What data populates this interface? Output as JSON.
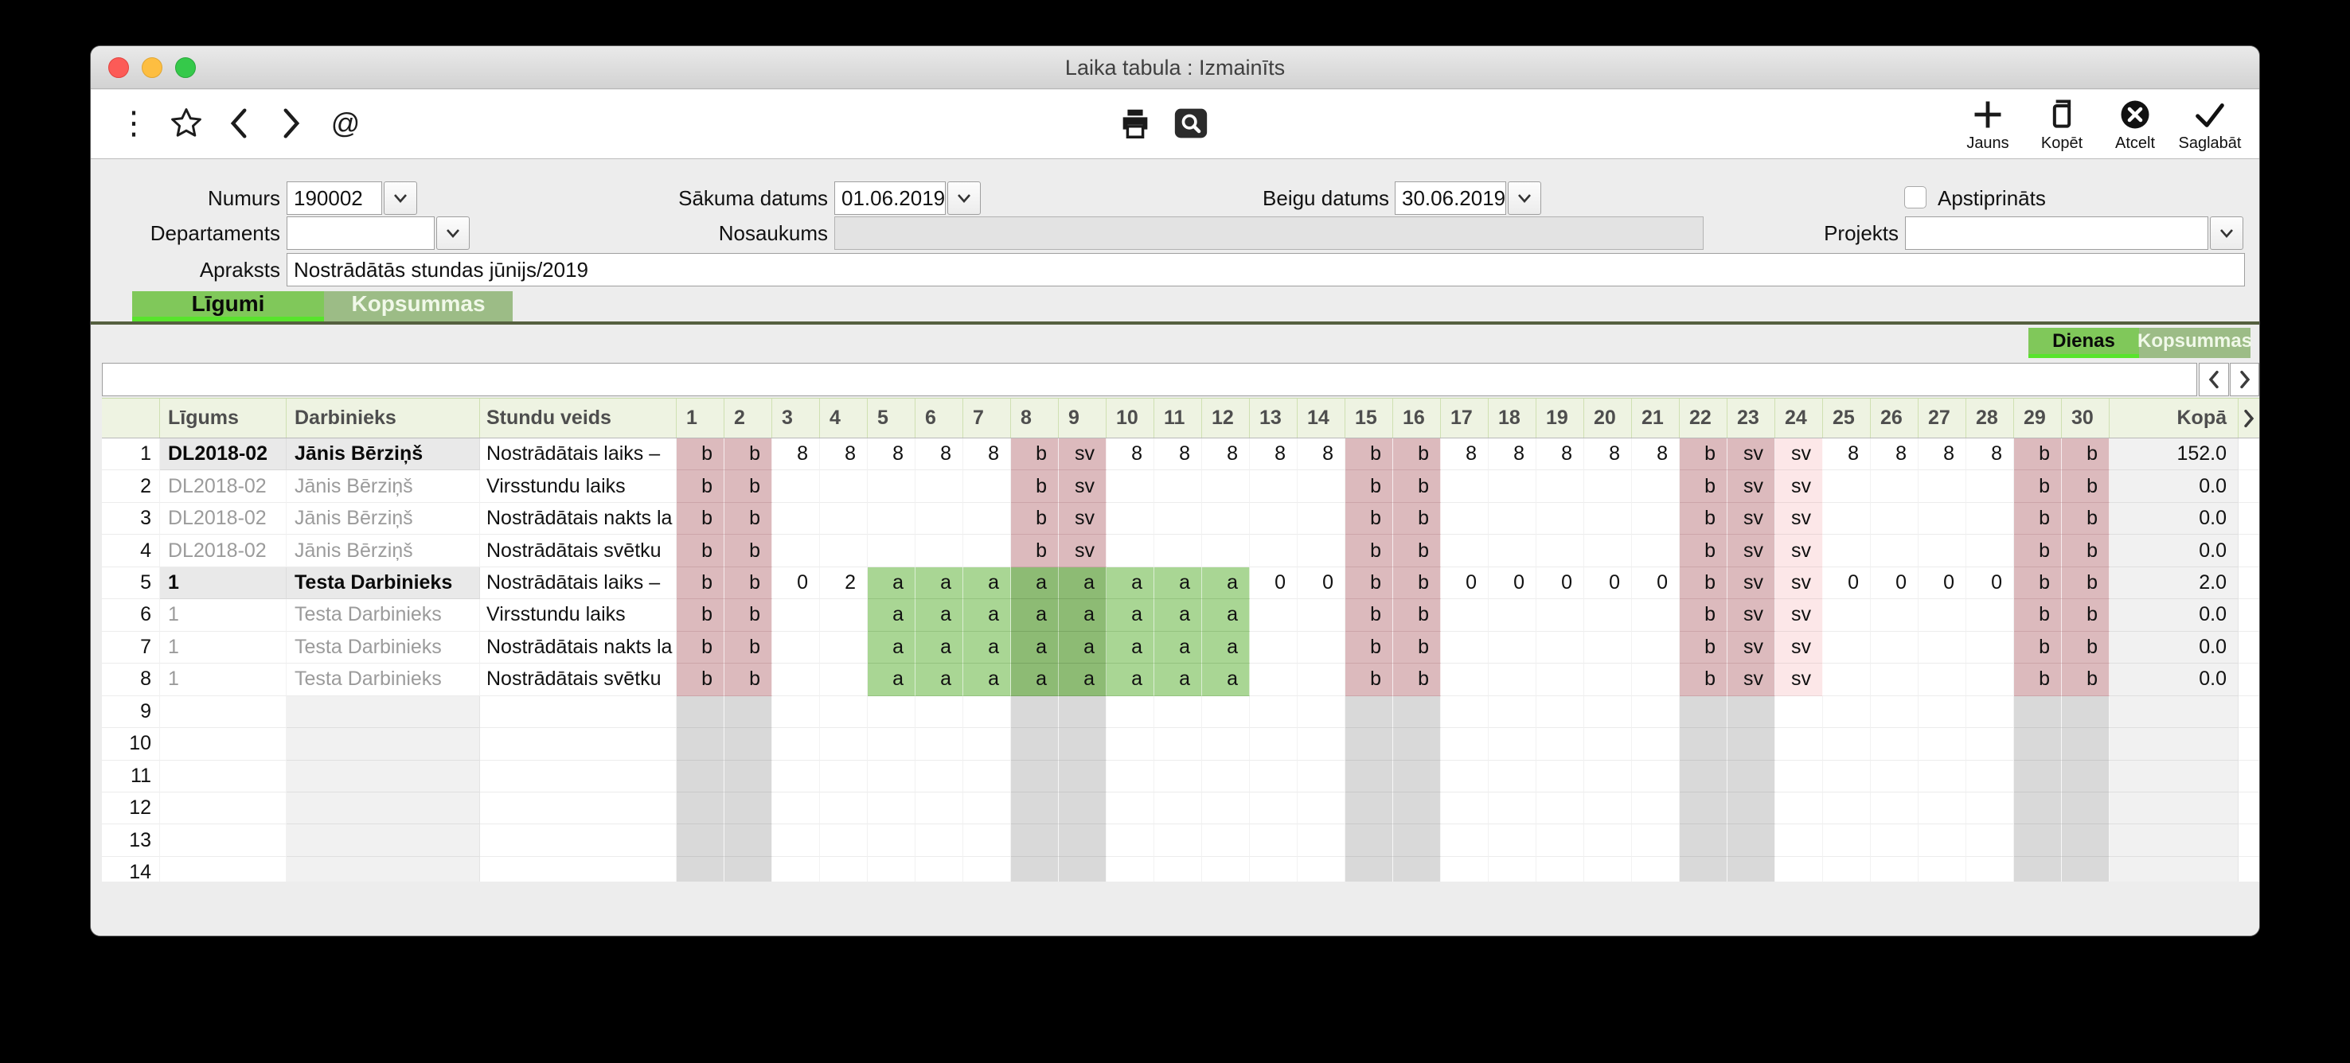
{
  "window": {
    "title": "Laika tabula : Izmainīts"
  },
  "toolbar": {
    "left_icons": [
      "kebab-menu",
      "favorite-star",
      "back",
      "forward",
      "link"
    ],
    "center_icons": [
      "print",
      "preview-search"
    ],
    "buttons": [
      {
        "label": "Jauns",
        "icon": "plus"
      },
      {
        "label": "Kopēt",
        "icon": "copy"
      },
      {
        "label": "Atcelt",
        "icon": "cancel-circle-x"
      },
      {
        "label": "Saglabāt",
        "icon": "check"
      }
    ]
  },
  "form": {
    "numurs_label": "Numurs",
    "numurs_value": "190002",
    "sakuma_label": "Sākuma datums",
    "sakuma_value": "01.06.2019",
    "beigu_label": "Beigu datums",
    "beigu_value": "30.06.2019",
    "apstiprinats_label": "Apstiprināts",
    "apstiprinats_checked": false,
    "departaments_label": "Departaments",
    "departaments_value": "",
    "nosaukums_label": "Nosaukums",
    "nosaukums_value": "",
    "projekts_label": "Projekts",
    "projekts_value": "",
    "apraksts_label": "Apraksts",
    "apraksts_value": "Nostrādātās stundas jūnijs/2019"
  },
  "tabs": {
    "main": [
      {
        "label": "Līgumi",
        "active": true
      },
      {
        "label": "Kopsummas",
        "active": false
      }
    ],
    "view": [
      {
        "label": "Dienas",
        "active": true
      },
      {
        "label": "Kopsummas",
        "active": false
      }
    ]
  },
  "table": {
    "headers": {
      "ligums": "Līgums",
      "darbinieks": "Darbinieks",
      "stundu_veids": "Stundu veids",
      "kopa": "Kopā"
    },
    "day_headers": [
      "1",
      "2",
      "3",
      "4",
      "5",
      "6",
      "7",
      "8",
      "9",
      "10",
      "11",
      "12",
      "13",
      "14",
      "15",
      "16",
      "17",
      "18",
      "19",
      "20",
      "21",
      "22",
      "23",
      "24",
      "25",
      "26",
      "27",
      "28",
      "29",
      "30"
    ],
    "weekend_days": [
      1,
      2,
      8,
      9,
      15,
      16,
      22,
      23,
      29,
      30
    ],
    "holiday_days": [
      24
    ],
    "total_row_slots": 15,
    "rows": [
      {
        "num": "1",
        "ligums": "DL2018-02",
        "darbinieks": "Jānis Bērziņš",
        "stundu_veids": "Nostrādātais laiks –",
        "emphasized": true,
        "days": {
          "1": "b",
          "2": "b",
          "3": "8",
          "4": "8",
          "5": "8",
          "6": "8",
          "7": "8",
          "8": "b",
          "9": "sv",
          "10": "8",
          "11": "8",
          "12": "8",
          "13": "8",
          "14": "8",
          "15": "b",
          "16": "b",
          "17": "8",
          "18": "8",
          "19": "8",
          "20": "8",
          "21": "8",
          "22": "b",
          "23": "sv",
          "24": "sv",
          "25": "8",
          "26": "8",
          "27": "8",
          "28": "8",
          "29": "b",
          "30": "b"
        },
        "kopa": "152.0"
      },
      {
        "num": "2",
        "ligums": "DL2018-02",
        "darbinieks": "Jānis Bērziņš",
        "stundu_veids": "Virsstundu laiks",
        "emphasized": false,
        "days": {
          "1": "b",
          "2": "b",
          "8": "b",
          "9": "sv",
          "15": "b",
          "16": "b",
          "22": "b",
          "23": "sv",
          "24": "sv",
          "29": "b",
          "30": "b"
        },
        "kopa": "0.0"
      },
      {
        "num": "3",
        "ligums": "DL2018-02",
        "darbinieks": "Jānis Bērziņš",
        "stundu_veids": "Nostrādātais nakts la",
        "emphasized": false,
        "days": {
          "1": "b",
          "2": "b",
          "8": "b",
          "9": "sv",
          "15": "b",
          "16": "b",
          "22": "b",
          "23": "sv",
          "24": "sv",
          "29": "b",
          "30": "b"
        },
        "kopa": "0.0"
      },
      {
        "num": "4",
        "ligums": "DL2018-02",
        "darbinieks": "Jānis Bērziņš",
        "stundu_veids": "Nostrādātais svētku",
        "emphasized": false,
        "days": {
          "1": "b",
          "2": "b",
          "8": "b",
          "9": "sv",
          "15": "b",
          "16": "b",
          "22": "b",
          "23": "sv",
          "24": "sv",
          "29": "b",
          "30": "b"
        },
        "kopa": "0.0"
      },
      {
        "num": "5",
        "ligums": "1",
        "darbinieks": "Testa Darbinieks",
        "stundu_veids": "Nostrādātais laiks –",
        "emphasized": true,
        "days": {
          "1": "b",
          "2": "b",
          "3": "0",
          "4": "2",
          "5": "a",
          "6": "a",
          "7": "a",
          "8": "a",
          "9": "a",
          "10": "a",
          "11": "a",
          "12": "a",
          "13": "0",
          "14": "0",
          "15": "b",
          "16": "b",
          "17": "0",
          "18": "0",
          "19": "0",
          "20": "0",
          "21": "0",
          "22": "b",
          "23": "sv",
          "24": "sv",
          "25": "0",
          "26": "0",
          "27": "0",
          "28": "0",
          "29": "b",
          "30": "b"
        },
        "kopa": "2.0"
      },
      {
        "num": "6",
        "ligums": "1",
        "darbinieks": "Testa Darbinieks",
        "stundu_veids": "Virsstundu laiks",
        "emphasized": false,
        "days": {
          "1": "b",
          "2": "b",
          "5": "a",
          "6": "a",
          "7": "a",
          "8": "a",
          "9": "a",
          "10": "a",
          "11": "a",
          "12": "a",
          "15": "b",
          "16": "b",
          "22": "b",
          "23": "sv",
          "24": "sv",
          "29": "b",
          "30": "b"
        },
        "kopa": "0.0"
      },
      {
        "num": "7",
        "ligums": "1",
        "darbinieks": "Testa Darbinieks",
        "stundu_veids": "Nostrādātais nakts la",
        "emphasized": false,
        "days": {
          "1": "b",
          "2": "b",
          "5": "a",
          "6": "a",
          "7": "a",
          "8": "a",
          "9": "a",
          "10": "a",
          "11": "a",
          "12": "a",
          "15": "b",
          "16": "b",
          "22": "b",
          "23": "sv",
          "24": "sv",
          "29": "b",
          "30": "b"
        },
        "kopa": "0.0"
      },
      {
        "num": "8",
        "ligums": "1",
        "darbinieks": "Testa Darbinieks",
        "stundu_veids": "Nostrādātais svētku",
        "emphasized": false,
        "days": {
          "1": "b",
          "2": "b",
          "5": "a",
          "6": "a",
          "7": "a",
          "8": "a",
          "9": "a",
          "10": "a",
          "11": "a",
          "12": "a",
          "15": "b",
          "16": "b",
          "22": "b",
          "23": "sv",
          "24": "sv",
          "29": "b",
          "30": "b"
        },
        "kopa": "0.0"
      }
    ]
  },
  "colors": {
    "active_tab_green": "#80c85a",
    "active_tab_underline": "#58e42c",
    "inactive_tab_green": "#9cbc86",
    "tab_divider": "#55603f",
    "header_bg": "#eef3e2",
    "weekend_pink": "#dcbabd",
    "holiday_light_pink": "#fce7e8",
    "vacation_green": "#a9d694",
    "vacation_weekend_green": "#8dbb74",
    "weekend_gray": "#d9d9d9",
    "kopa_bg": "#f1f1f1",
    "traffic_red": "#fc5b57",
    "traffic_yellow": "#fdbe41",
    "traffic_green": "#35c94a"
  }
}
